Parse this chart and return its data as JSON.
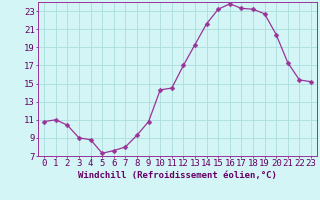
{
  "x": [
    0,
    1,
    2,
    3,
    4,
    5,
    6,
    7,
    8,
    9,
    10,
    11,
    12,
    13,
    14,
    15,
    16,
    17,
    18,
    19,
    20,
    21,
    22,
    23
  ],
  "y": [
    10.8,
    11.0,
    10.4,
    9.0,
    8.8,
    7.3,
    7.6,
    8.0,
    9.3,
    10.8,
    14.3,
    14.5,
    17.0,
    19.3,
    21.6,
    23.2,
    23.8,
    23.3,
    23.2,
    22.7,
    20.4,
    17.3,
    15.4,
    15.2
  ],
  "line_color": "#993399",
  "marker": "D",
  "marker_size": 2.5,
  "bg_color": "#d4f5f5",
  "grid_color": "#aadddd",
  "xlabel": "Windchill (Refroidissement éolien,°C)",
  "ylabel": "",
  "xlim": [
    -0.5,
    23.5
  ],
  "ylim": [
    7,
    24
  ],
  "yticks": [
    7,
    9,
    11,
    13,
    15,
    17,
    19,
    21,
    23
  ],
  "xticks": [
    0,
    1,
    2,
    3,
    4,
    5,
    6,
    7,
    8,
    9,
    10,
    11,
    12,
    13,
    14,
    15,
    16,
    17,
    18,
    19,
    20,
    21,
    22,
    23
  ],
  "xlabel_fontsize": 6.5,
  "tick_fontsize": 6.5,
  "tick_color": "#660066",
  "spine_color": "#993399",
  "label_color": "#660066"
}
